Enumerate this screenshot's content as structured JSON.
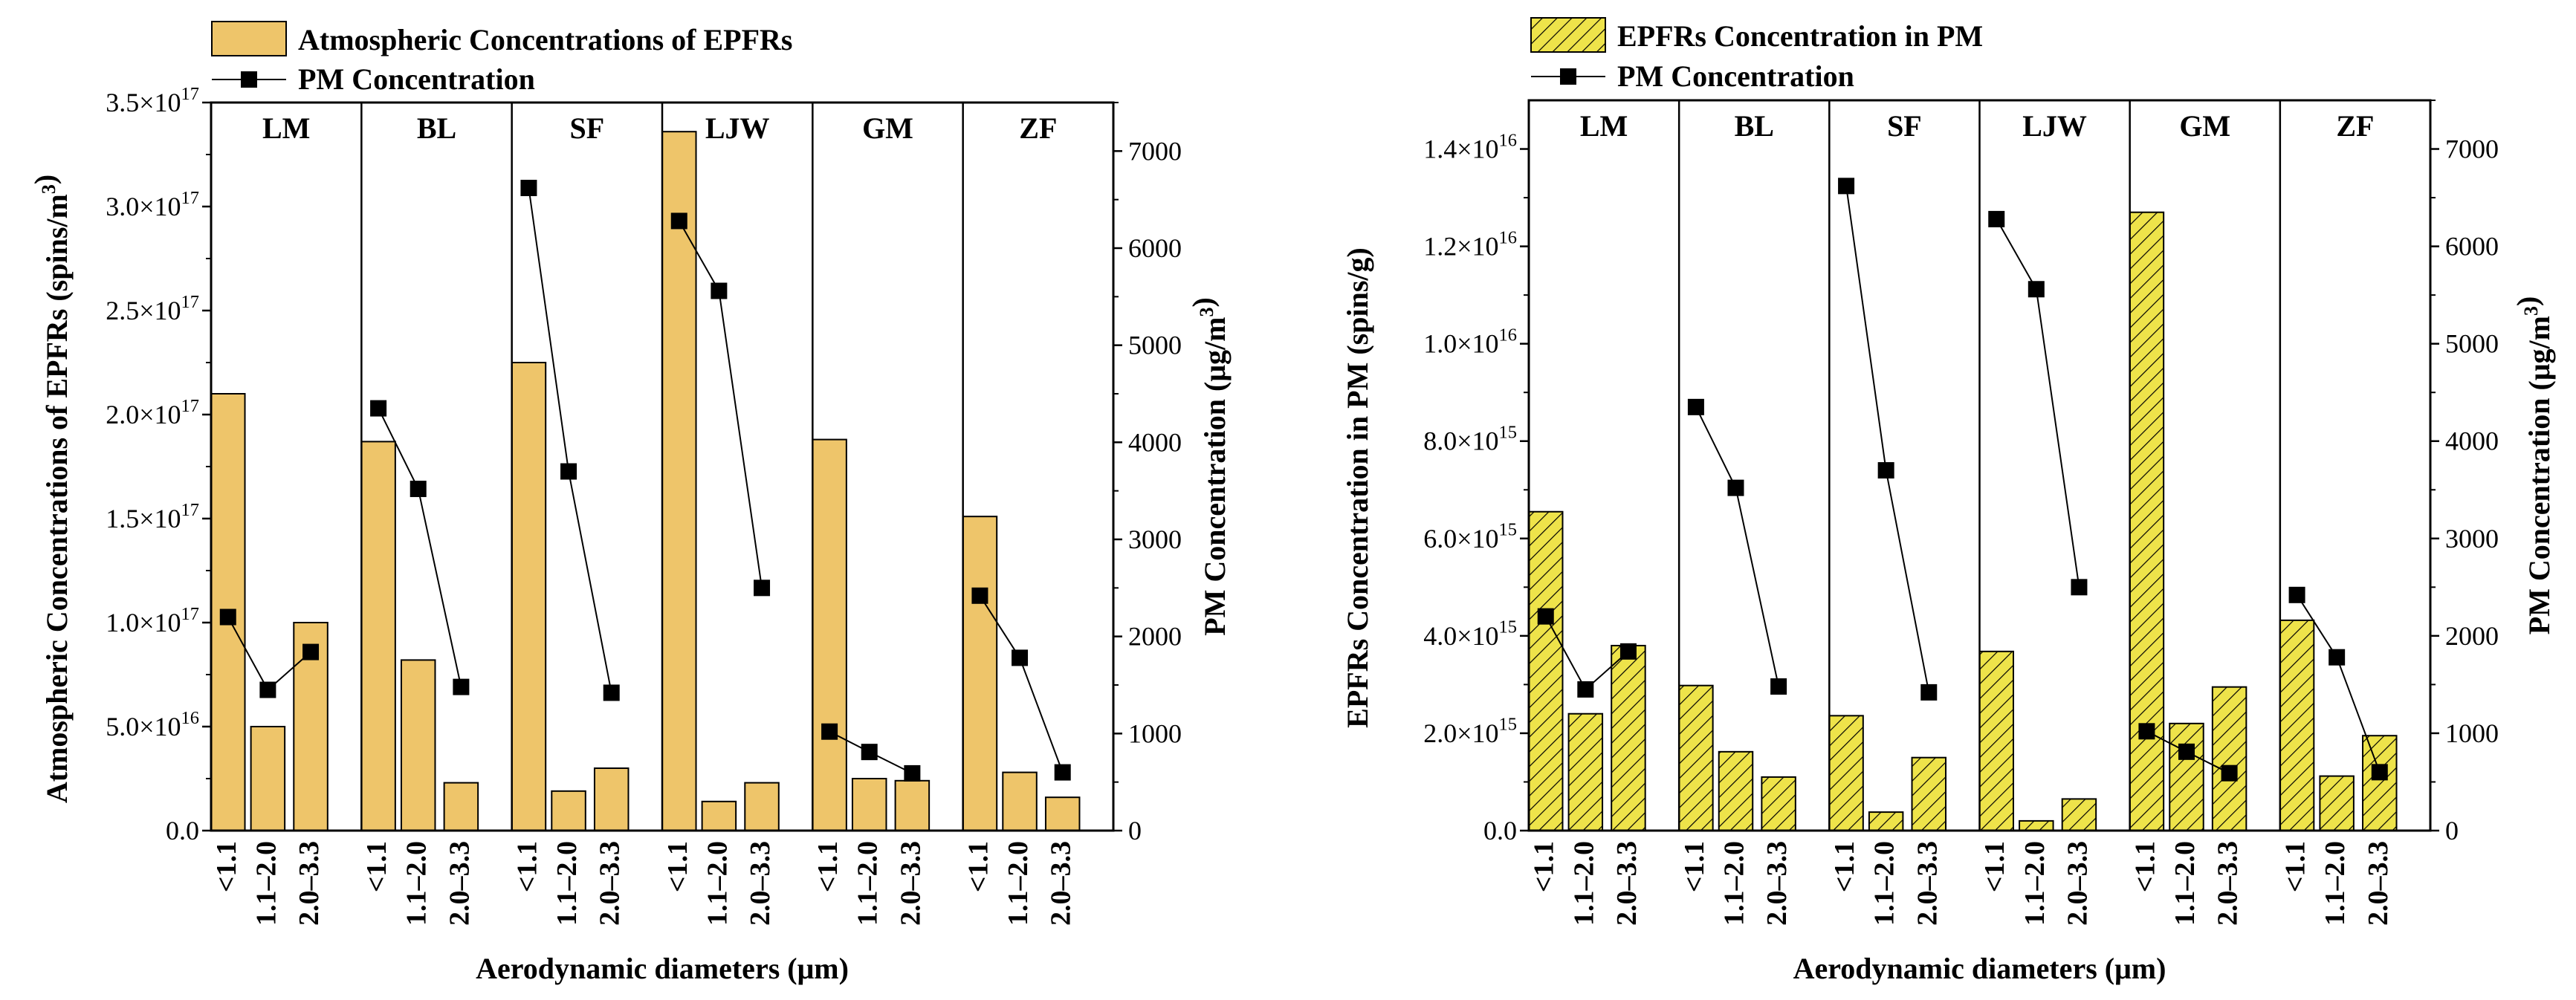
{
  "chart_data": [
    {
      "type": "bar",
      "title": "",
      "xlabel": "Aerodynamic diameters (μm)",
      "ylabel": "Atmospheric  Concentrations of EPFRs (spins/m³)",
      "ylabel2": "PM Concentration (μg/m³)",
      "groups": [
        "LM",
        "BL",
        "SF",
        "LJW",
        "GM",
        "ZF"
      ],
      "categories": [
        "<1.1",
        "1.1–2.0",
        "2.0–3.3"
      ],
      "ylim": [
        0,
        3.5e+17
      ],
      "y2lim": [
        0,
        7500
      ],
      "yticks": [
        {
          "value": 0,
          "label": "0.0"
        },
        {
          "value": 5e+16,
          "base": "5.0",
          "exp": "16"
        },
        {
          "value": 1e+17,
          "base": "1.0",
          "exp": "17"
        },
        {
          "value": 1.5e+17,
          "base": "1.5",
          "exp": "17"
        },
        {
          "value": 2e+17,
          "base": "2.0",
          "exp": "17"
        },
        {
          "value": 2.5e+17,
          "base": "2.5",
          "exp": "17"
        },
        {
          "value": 3e+17,
          "base": "3.0",
          "exp": "17"
        },
        {
          "value": 3.5e+17,
          "base": "3.5",
          "exp": "17"
        }
      ],
      "y2ticks": [
        0,
        1000,
        2000,
        3000,
        4000,
        5000,
        6000,
        7000
      ],
      "bar_series": {
        "name": "Atmospheric  Concentrations of EPFRs",
        "color": "#EEC56A",
        "pattern": "solid",
        "values": [
          [
            2.1e+17,
            5e+16,
            1e+17
          ],
          [
            1.87e+17,
            8.2e+16,
            2.3e+16
          ],
          [
            2.25e+17,
            1.9e+16,
            3e+16
          ],
          [
            3.36e+17,
            1.4e+16,
            2.3e+16
          ],
          [
            1.88e+17,
            2.5e+16,
            2.4e+16
          ],
          [
            1.51e+17,
            2.8e+16,
            1.6e+16
          ]
        ]
      },
      "line_series": {
        "name": "PM Concentration",
        "color": "#000000",
        "values": [
          [
            2200,
            1450,
            1840
          ],
          [
            4350,
            3520,
            1480
          ],
          [
            6620,
            3700,
            1420
          ],
          [
            6280,
            5560,
            2500
          ],
          [
            1020,
            810,
            590
          ],
          [
            2420,
            1780,
            600
          ]
        ]
      }
    },
    {
      "type": "bar",
      "title": "",
      "xlabel": "Aerodynamic diameters (μm)",
      "ylabel": "EPFRs Concentration in PM (spins/g)",
      "ylabel2": "PM Concentration (μg/m³)",
      "groups": [
        "LM",
        "BL",
        "SF",
        "LJW",
        "GM",
        "ZF"
      ],
      "categories": [
        "<1.1",
        "1.1–2.0",
        "2.0–3.3"
      ],
      "ylim": [
        0,
        1.5e+16
      ],
      "y2lim": [
        0,
        7500
      ],
      "yticks": [
        {
          "value": 0,
          "label": "0.0"
        },
        {
          "value": 2000000000000000.0,
          "base": "2.0",
          "exp": "15"
        },
        {
          "value": 4000000000000000.0,
          "base": "4.0",
          "exp": "15"
        },
        {
          "value": 6000000000000000.0,
          "base": "6.0",
          "exp": "15"
        },
        {
          "value": 8000000000000000.0,
          "base": "8.0",
          "exp": "15"
        },
        {
          "value": 1e+16,
          "base": "1.0",
          "exp": "16"
        },
        {
          "value": 1.2e+16,
          "base": "1.2",
          "exp": "16"
        },
        {
          "value": 1.4e+16,
          "base": "1.4",
          "exp": "16"
        }
      ],
      "y2ticks": [
        0,
        1000,
        2000,
        3000,
        4000,
        5000,
        6000,
        7000
      ],
      "bar_series": {
        "name": "EPFRs Concentration in PM",
        "color": "#EEE34A",
        "pattern": "hatched",
        "values": [
          [
            6550000000000000.0,
            2400000000000000.0,
            3800000000000000.0
          ],
          [
            2980000000000000.0,
            1620000000000000.0,
            1100000000000000.0
          ],
          [
            2360000000000000.0,
            380000000000000.0,
            1500000000000000.0
          ],
          [
            3680000000000000.0,
            200000000000000.0,
            650000000000000.0
          ],
          [
            1.27e+16,
            2200000000000000.0,
            2950000000000000.0
          ],
          [
            4320000000000000.0,
            1120000000000000.0,
            1950000000000000.0
          ]
        ]
      },
      "line_series": {
        "name": "PM Concentration",
        "color": "#000000",
        "values": [
          [
            2200,
            1450,
            1840
          ],
          [
            4350,
            3520,
            1480
          ],
          [
            6620,
            3700,
            1420
          ],
          [
            6280,
            5560,
            2500
          ],
          [
            1020,
            810,
            590
          ],
          [
            2420,
            1780,
            600
          ]
        ]
      }
    }
  ]
}
